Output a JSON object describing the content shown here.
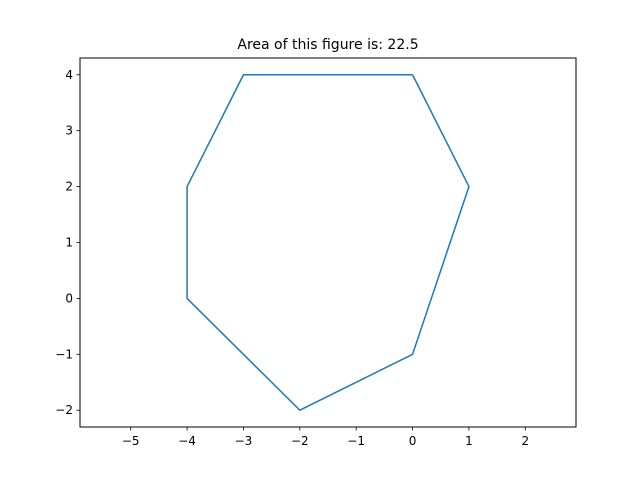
{
  "chart_data": {
    "type": "line",
    "title": "Area of this figure is: 22.5",
    "xlabel": "",
    "ylabel": "",
    "xlim": [
      -5.9,
      2.9
    ],
    "ylim": [
      -2.3,
      4.3
    ],
    "xticks": [
      -5,
      -4,
      -3,
      -2,
      -1,
      0,
      1,
      2
    ],
    "yticks": [
      -2,
      -1,
      0,
      1,
      2,
      3,
      4
    ],
    "grid": false,
    "series": [
      {
        "color": "#1f77b4",
        "x": [
          0,
          -3,
          -4,
          -4,
          -2,
          0,
          1,
          0
        ],
        "y": [
          4,
          4,
          2,
          0,
          -2,
          -1,
          2,
          4
        ]
      }
    ]
  }
}
